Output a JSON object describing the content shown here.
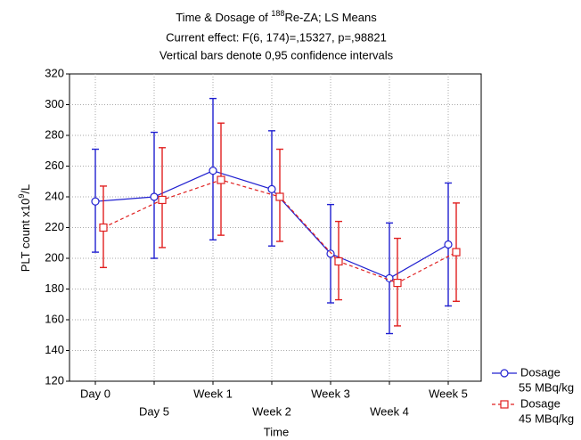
{
  "chart_data": {
    "type": "line",
    "title": [
      "Time & Dosage of ",
      "188",
      "Re-ZA; LS Means"
    ],
    "subtitle": [
      "Current effect: F(6, 174)=,15327, p=,98821",
      "Vertical bars denote 0,95 confidence intervals"
    ],
    "x_label": "Time",
    "y_label": [
      "PLT count x10",
      "9",
      "/L"
    ],
    "categories": [
      "Day 0",
      "Day 5",
      "Week 1",
      "Week 2",
      "Week 3",
      "Week 4",
      "Week 5"
    ],
    "ylim": [
      120,
      320
    ],
    "yticks": [
      120,
      140,
      160,
      180,
      200,
      220,
      240,
      260,
      280,
      300,
      320
    ],
    "grid": true,
    "series": [
      {
        "name": "Dosage",
        "dose": "55 MBq/kg",
        "color": "#2020d0",
        "marker": "circle",
        "dashed": false,
        "values": [
          237,
          240,
          257,
          245,
          203,
          187,
          209
        ],
        "lower": [
          204,
          200,
          212,
          208,
          171,
          151,
          169
        ],
        "upper": [
          271,
          282,
          304,
          283,
          235,
          223,
          249
        ]
      },
      {
        "name": "Dosage",
        "dose": "45 MBq/kg",
        "color": "#e02020",
        "marker": "square",
        "dashed": true,
        "values": [
          220,
          238,
          251,
          240,
          198,
          184,
          204
        ],
        "lower": [
          194,
          207,
          215,
          211,
          173,
          156,
          172
        ],
        "upper": [
          247,
          272,
          288,
          271,
          224,
          213,
          236
        ]
      }
    ]
  }
}
